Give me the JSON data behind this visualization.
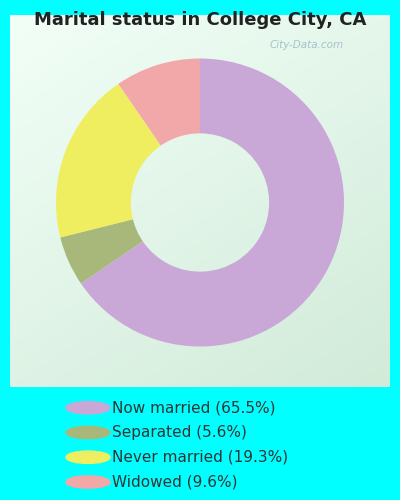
{
  "title": "Marital status in College City, CA",
  "slices": [
    65.5,
    5.6,
    19.3,
    9.6
  ],
  "labels": [
    "Now married (65.5%)",
    "Separated (5.6%)",
    "Never married (19.3%)",
    "Widowed (9.6%)"
  ],
  "colors": [
    "#C9A8D8",
    "#A8B87A",
    "#EEEE60",
    "#F2A8A8"
  ],
  "legend_colors": [
    "#C9A8D8",
    "#A8B87A",
    "#EEEE60",
    "#F2A8A8"
  ],
  "outer_bg": "#00FFFF",
  "chart_bg_tl": "#E8F5EE",
  "chart_bg_br": "#D0E8D8",
  "title_fontsize": 13,
  "legend_fontsize": 11,
  "watermark": "City-Data.com",
  "donut_width": 0.52
}
